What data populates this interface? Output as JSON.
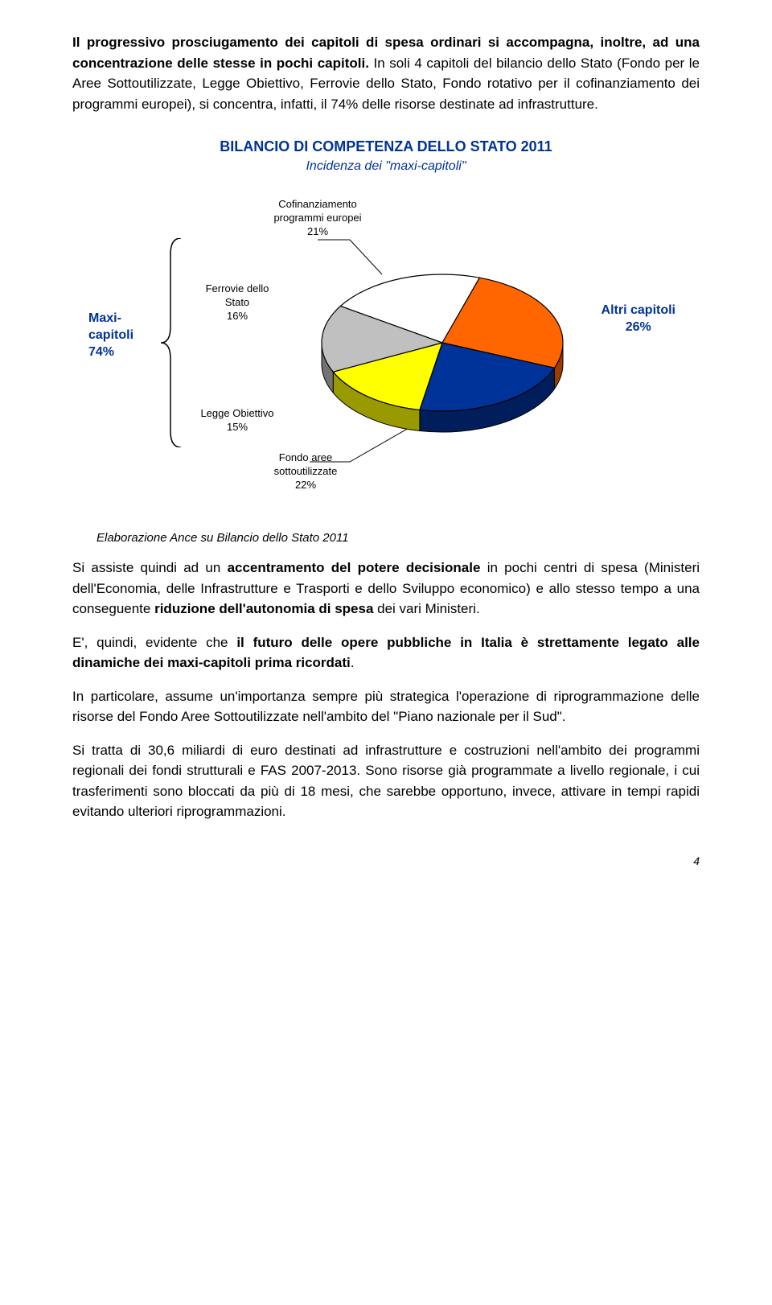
{
  "p1_a": "Il progressivo prosciugamento dei capitoli di spesa ordinari si accompagna, inoltre, ad una concentrazione delle stesse in pochi capitoli.",
  "p1_b": " In soli 4 capitoli del bilancio dello Stato (Fondo per le Aree Sottoutilizzate, Legge Obiettivo, Ferrovie dello Stato, Fondo rotativo per il cofinanziamento dei programmi europei), si concentra, infatti, il 74% delle risorse destinate ad infrastrutture.",
  "chart": {
    "title": "BILANCIO DI COMPETENZA DELLO STATO 2011",
    "subtitle": "Incidenza dei \"maxi-capitoli\"",
    "maxi_label": "Maxi-capitoli 74%",
    "altri_label": "Altri capitoli 26%",
    "slices": [
      {
        "label": "Cofinanziamento programmi europei 21%",
        "value": 21,
        "color": "#ffffff"
      },
      {
        "label": "Altri capitoli 26%",
        "value": 26,
        "color": "#ff6600"
      },
      {
        "label": "Fondo aree sottoutilizzate 22%",
        "value": 22,
        "color": "#003399"
      },
      {
        "label": "Legge Obiettivo 15%",
        "value": 15,
        "color": "#ffff00"
      },
      {
        "label": "Ferrovie dello Stato 16%",
        "value": 16,
        "color": "#c0c0c0"
      }
    ],
    "label_cofin": "Cofinanziamento\nprogrammi europei\n21%",
    "label_ferrovie": "Ferrovie dello\nStato\n16%",
    "label_legge": "Legge Obiettivo\n15%",
    "label_fondo": "Fondo aree\nsottoutilizzate\n22%",
    "border_color": "#000000",
    "depth_color_factor": 0.6
  },
  "elab": "Elaborazione Ance su Bilancio dello Stato 2011",
  "p2_a": "Si assiste quindi ad un ",
  "p2_b": "accentramento del potere decisionale",
  "p2_c": " in pochi centri di spesa (Ministeri dell'Economia, delle Infrastrutture e Trasporti e dello Sviluppo economico) e allo stesso tempo a una conseguente ",
  "p2_d": "riduzione dell'autonomia di spesa",
  "p2_e": " dei vari Ministeri.",
  "p3_a": "E', quindi, evidente che ",
  "p3_b": "il futuro delle opere pubbliche in Italia è strettamente legato alle dinamiche dei maxi-capitoli prima ricordati",
  "p3_c": ".",
  "p4": "In particolare, assume un'importanza sempre più strategica l'operazione di riprogrammazione delle risorse del Fondo Aree Sottoutilizzate nell'ambito del \"Piano nazionale per il Sud\".",
  "p5": "Si tratta di 30,6 miliardi di euro destinati ad infrastrutture e costruzioni nell'ambito dei programmi regionali dei fondi strutturali e FAS 2007-2013. Sono risorse già programmate a livello regionale, i cui trasferimenti sono bloccati da più di 18 mesi, che sarebbe opportuno, invece, attivare in tempi rapidi evitando ulteriori riprogrammazioni.",
  "pagenum": "4"
}
